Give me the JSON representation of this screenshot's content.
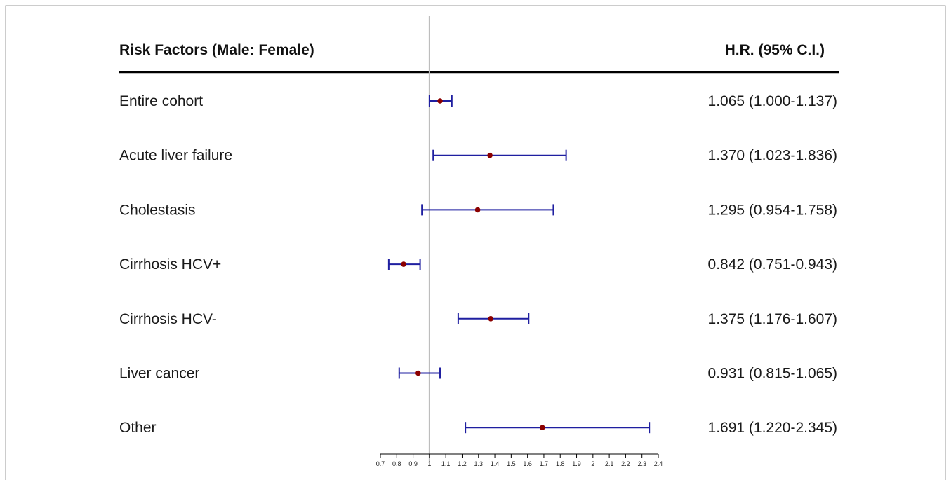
{
  "chart_data": {
    "type": "forest",
    "header": {
      "left": "Risk Factors (Male: Female)",
      "right": "H.R. (95% C.I.)"
    },
    "reference_line": 1,
    "xlim": [
      0.7,
      2.4
    ],
    "x_ticks": [
      "0.7",
      "0.8",
      "0.9",
      "1",
      "1.1",
      "1.2",
      "1.3",
      "1.4",
      "1.5",
      "1.6",
      "1.7",
      "1.8",
      "1.9",
      "2",
      "2.1",
      "2.2",
      "2.3",
      "2.4"
    ],
    "colors": {
      "ci_line": "#1f1fa0",
      "point": "#8b0000",
      "reference": "#bdbdbd",
      "axis": "#000000"
    },
    "rows": [
      {
        "label": "Entire cohort",
        "hr": 1.065,
        "lower": 1.0,
        "upper": 1.137,
        "text": "1.065 (1.000-1.137)"
      },
      {
        "label": "Acute liver failure",
        "hr": 1.37,
        "lower": 1.023,
        "upper": 1.836,
        "text": "1.370 (1.023-1.836)"
      },
      {
        "label": "Cholestasis",
        "hr": 1.295,
        "lower": 0.954,
        "upper": 1.758,
        "text": "1.295 (0.954-1.758)"
      },
      {
        "label": "Cirrhosis HCV+",
        "hr": 0.842,
        "lower": 0.751,
        "upper": 0.943,
        "text": "0.842 (0.751-0.943)"
      },
      {
        "label": "Cirrhosis HCV-",
        "hr": 1.375,
        "lower": 1.176,
        "upper": 1.607,
        "text": "1.375 (1.176-1.607)"
      },
      {
        "label": "Liver cancer",
        "hr": 0.931,
        "lower": 0.815,
        "upper": 1.065,
        "text": "0.931 (0.815-1.065)"
      },
      {
        "label": "Other",
        "hr": 1.691,
        "lower": 1.22,
        "upper": 2.345,
        "text": "1.691 (1.220-2.345)"
      }
    ]
  }
}
